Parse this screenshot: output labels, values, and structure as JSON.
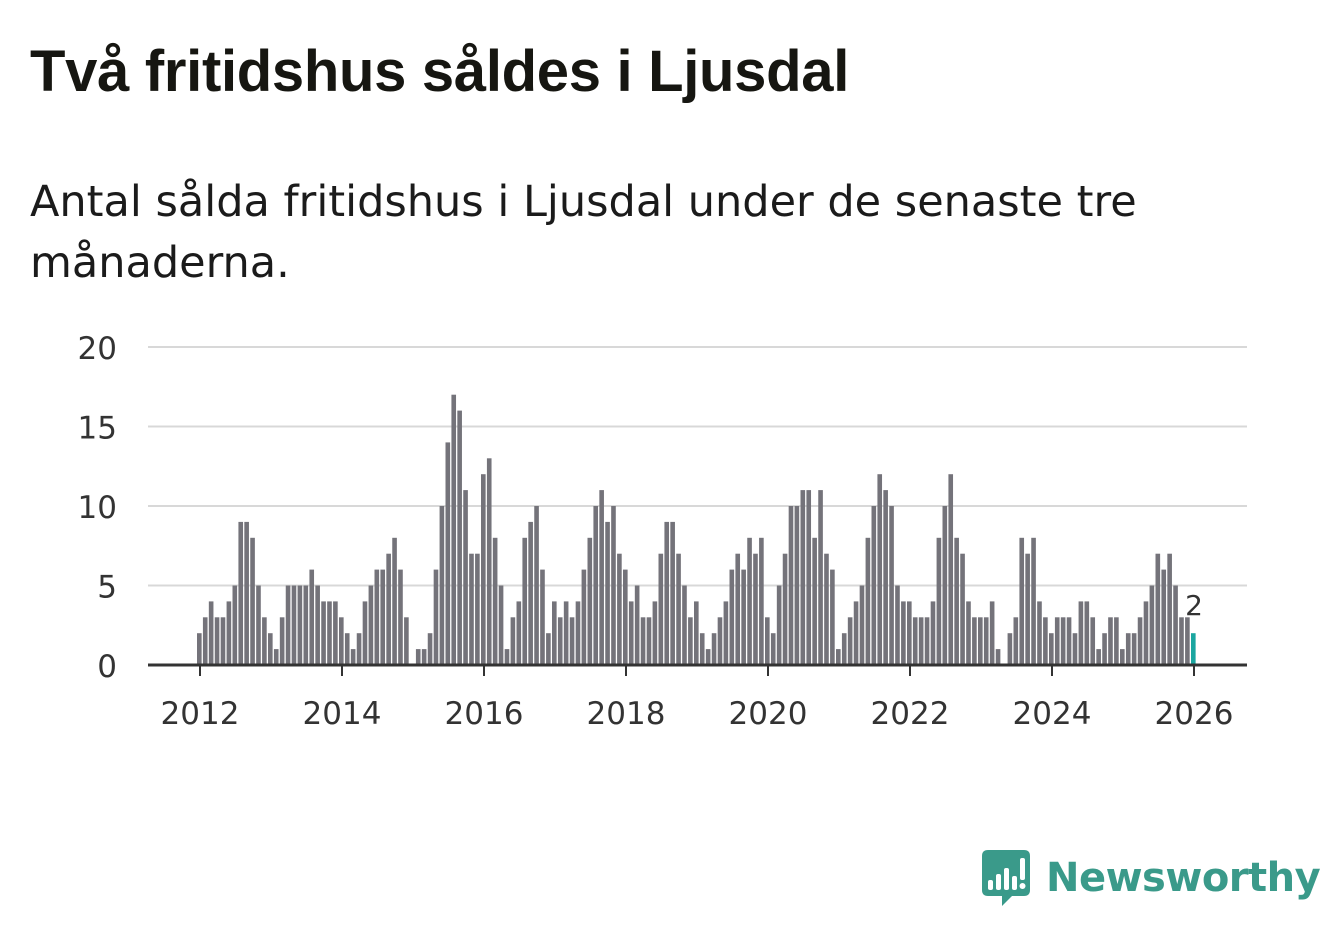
{
  "title": "Två fritidshus såldes i Ljusdal",
  "subtitle": "Antal sålda fritidshus i Ljusdal under de senaste tre månaderna.",
  "brand": {
    "name": "Newsworthy",
    "icon": "newsworthy-logo-icon"
  },
  "colors": {
    "bar": "#74737a",
    "highlight": "#1ba6a0",
    "grid": "#d8d8d8",
    "axis": "#333333",
    "brand": "#3a9a8a"
  },
  "chart_data": {
    "type": "bar",
    "title": "Två fritidshus såldes i Ljusdal",
    "xlabel": "",
    "ylabel": "",
    "ylim": [
      0,
      20
    ],
    "yticks": [
      0,
      5,
      10,
      15,
      20
    ],
    "xticks": [
      "2012",
      "2014",
      "2016",
      "2018",
      "2020",
      "2022",
      "2024",
      "2026"
    ],
    "start": "2012-01",
    "grid": true,
    "annotation": {
      "label": "2",
      "index": 168
    },
    "values": [
      2,
      3,
      4,
      3,
      3,
      4,
      5,
      9,
      9,
      8,
      5,
      3,
      2,
      1,
      3,
      5,
      5,
      5,
      5,
      6,
      5,
      4,
      4,
      4,
      3,
      2,
      1,
      2,
      4,
      5,
      6,
      6,
      7,
      8,
      6,
      3,
      0,
      1,
      1,
      2,
      6,
      10,
      14,
      17,
      16,
      11,
      7,
      7,
      12,
      13,
      8,
      5,
      1,
      3,
      4,
      8,
      9,
      10,
      6,
      2,
      4,
      3,
      4,
      3,
      4,
      6,
      8,
      10,
      11,
      9,
      10,
      7,
      6,
      4,
      5,
      3,
      3,
      4,
      7,
      9,
      9,
      7,
      5,
      3,
      4,
      2,
      1,
      2,
      3,
      4,
      6,
      7,
      6,
      8,
      7,
      8,
      3,
      2,
      5,
      7,
      10,
      10,
      11,
      11,
      8,
      11,
      7,
      6,
      1,
      2,
      3,
      4,
      5,
      8,
      10,
      12,
      11,
      10,
      5,
      4,
      4,
      3,
      3,
      3,
      4,
      8,
      10,
      12,
      8,
      7,
      4,
      3,
      3,
      3,
      4,
      1,
      0,
      2,
      3,
      8,
      7,
      8,
      4,
      3,
      2,
      3,
      3,
      3,
      2,
      4,
      4,
      3,
      1,
      2,
      3,
      3,
      1,
      2,
      2,
      3,
      4,
      5,
      7,
      6,
      7,
      5,
      3,
      3,
      2
    ]
  }
}
